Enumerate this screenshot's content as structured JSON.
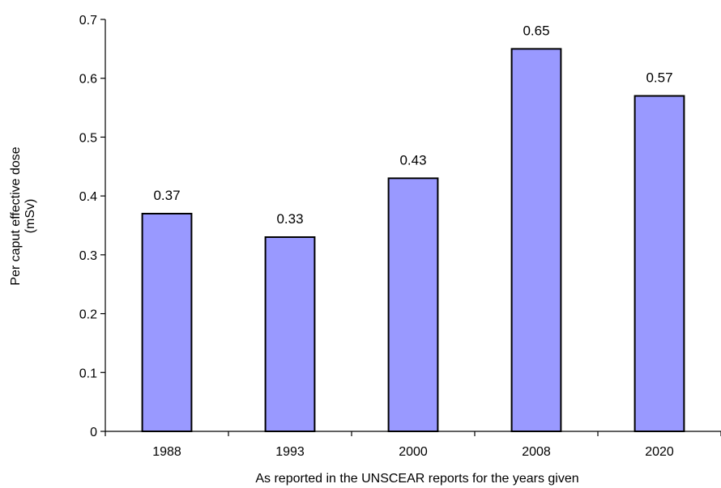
{
  "chart_data": {
    "type": "bar",
    "categories": [
      "1988",
      "1993",
      "2000",
      "2008",
      "2020"
    ],
    "values": [
      0.37,
      0.33,
      0.43,
      0.65,
      0.57
    ],
    "data_labels": [
      "0.37",
      "0.33",
      "0.43",
      "0.65",
      "0.57"
    ],
    "y_ticks": [
      "0",
      "0.1",
      "0.2",
      "0.3",
      "0.4",
      "0.5",
      "0.6",
      "0.7"
    ],
    "ylim": [
      0,
      0.7
    ],
    "xlabel": "As reported in the UNSCEAR reports for the years given",
    "ylabel_lines": [
      "Per caput effective dose",
      "(mSv)"
    ],
    "grid": false,
    "legend": "none",
    "colors": {
      "bar_fill": "#9999ff",
      "bar_stroke": "#000000",
      "axis": "#000000"
    }
  }
}
